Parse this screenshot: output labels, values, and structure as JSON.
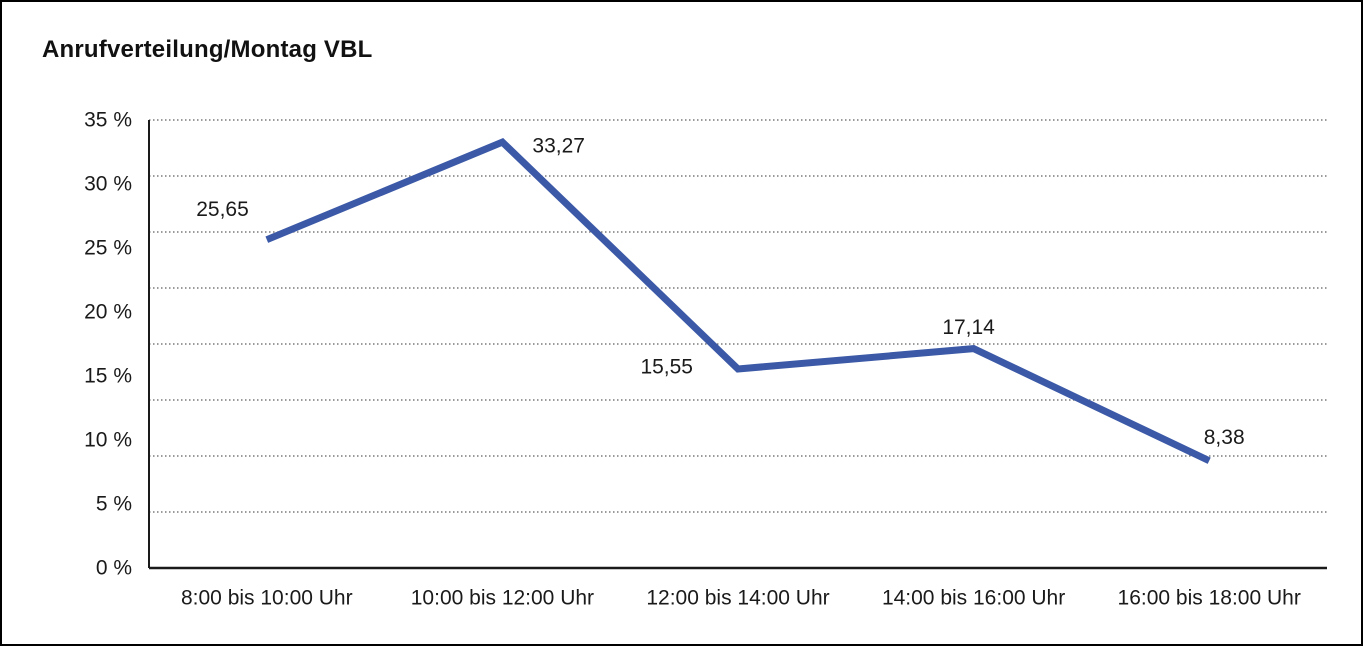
{
  "chart_data": {
    "type": "line",
    "title": "Anrufverteilung/Montag VBL",
    "categories": [
      "8:00 bis 10:00 Uhr",
      "10:00 bis 12:00 Uhr",
      "12:00 bis 14:00 Uhr",
      "14:00 bis 16:00 Uhr",
      "16:00 bis 18:00 Uhr"
    ],
    "values": [
      25.65,
      33.27,
      15.55,
      17.14,
      8.38
    ],
    "value_labels": [
      "25,65",
      "33,27",
      "15,55",
      "17,14",
      "8,38"
    ],
    "y_ticks": [
      "35 %",
      "30 %",
      "25 %",
      "20 %",
      "15 %",
      "10 %",
      "5 %",
      "0 %"
    ],
    "ylim": [
      0,
      35
    ],
    "xlabel": "",
    "ylabel": "",
    "grid": "horizontal-dotted",
    "legend": "none",
    "line_color": "#3B59A7",
    "axis_color": "#1a1a1a",
    "gridline_color": "#5f5f5f",
    "text_color": "#1a1a1a"
  }
}
